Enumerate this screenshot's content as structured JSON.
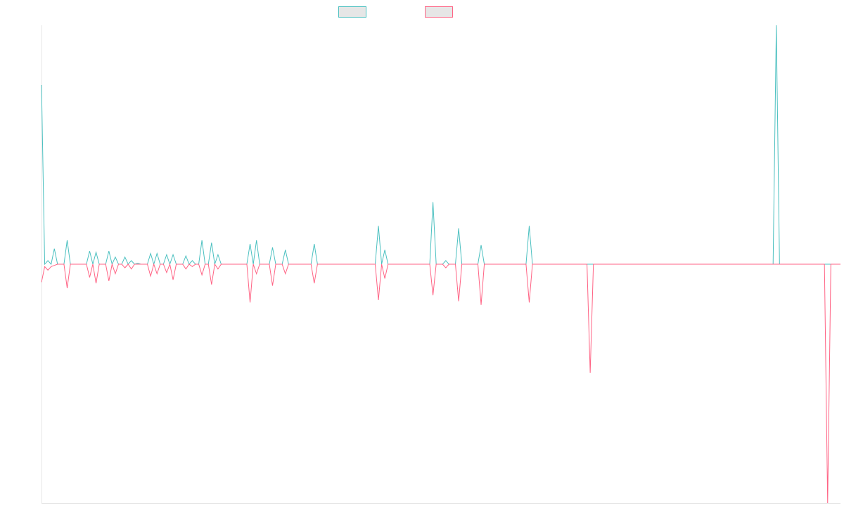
{
  "chart_data": {
    "type": "line",
    "grid": false,
    "legend_placement": "top-center",
    "x_count": 250,
    "ylim": [
      -1,
      1
    ],
    "series": [
      {
        "name": "",
        "color": "#4bc0c0",
        "points": [
          [
            0,
            0.75
          ],
          [
            1,
            0.0
          ],
          [
            2,
            0.015
          ],
          [
            3,
            0.0
          ],
          [
            4,
            0.065
          ],
          [
            5,
            0.0
          ],
          [
            7,
            0.0
          ],
          [
            8,
            0.1
          ],
          [
            9,
            0.0
          ],
          [
            14,
            0.0
          ],
          [
            15,
            0.055
          ],
          [
            16,
            0.0
          ],
          [
            17,
            0.05
          ],
          [
            18,
            0.0
          ],
          [
            20,
            0.0
          ],
          [
            21,
            0.055
          ],
          [
            22,
            0.0
          ],
          [
            23,
            0.03
          ],
          [
            24,
            0.0
          ],
          [
            26,
            0.03
          ],
          [
            27,
            0.0
          ],
          [
            28,
            0.015
          ],
          [
            29,
            0.0
          ],
          [
            30,
            0.004
          ],
          [
            31,
            0.0
          ],
          [
            33,
            0.0
          ],
          [
            34,
            0.045
          ],
          [
            35,
            0.0
          ],
          [
            36,
            0.045
          ],
          [
            37,
            0.0
          ],
          [
            38,
            0.0
          ],
          [
            39,
            0.04
          ],
          [
            40,
            0.0
          ],
          [
            41,
            0.04
          ],
          [
            42,
            0.0
          ],
          [
            44,
            0.0
          ],
          [
            45,
            0.035
          ],
          [
            46,
            0.0
          ],
          [
            47,
            0.015
          ],
          [
            48,
            0.0
          ],
          [
            49,
            0.0
          ],
          [
            50,
            0.1
          ],
          [
            51,
            0.0
          ],
          [
            52,
            0.0
          ],
          [
            53,
            0.09
          ],
          [
            54,
            0.0
          ],
          [
            55,
            0.04
          ],
          [
            56,
            0.0
          ],
          [
            64,
            0.0
          ],
          [
            65,
            0.085
          ],
          [
            66,
            0.0
          ],
          [
            67,
            0.1
          ],
          [
            68,
            0.0
          ],
          [
            71,
            0.0
          ],
          [
            72,
            0.07
          ],
          [
            73,
            0.0
          ],
          [
            75,
            0.0
          ],
          [
            76,
            0.06
          ],
          [
            77,
            0.0
          ],
          [
            84,
            0.0
          ],
          [
            85,
            0.085
          ],
          [
            86,
            0.0
          ],
          [
            104,
            0.0
          ],
          [
            105,
            0.16
          ],
          [
            106,
            0.0
          ],
          [
            107,
            0.06
          ],
          [
            108,
            0.0
          ],
          [
            121,
            0.0
          ],
          [
            122,
            0.26
          ],
          [
            123,
            0.0
          ],
          [
            125,
            0.0
          ],
          [
            126,
            0.015
          ],
          [
            127,
            0.0
          ],
          [
            129,
            0.0
          ],
          [
            130,
            0.15
          ],
          [
            131,
            0.0
          ],
          [
            136,
            0.0
          ],
          [
            137,
            0.08
          ],
          [
            138,
            0.0
          ],
          [
            151,
            0.0
          ],
          [
            152,
            0.16
          ],
          [
            153,
            0.0
          ],
          [
            228,
            0.0
          ],
          [
            229,
            1.0
          ],
          [
            230,
            0.0
          ],
          [
            249,
            0.0
          ]
        ]
      },
      {
        "name": "",
        "color": "#ff6384",
        "points": [
          [
            0,
            -0.075
          ],
          [
            1,
            -0.01
          ],
          [
            2,
            -0.025
          ],
          [
            3,
            -0.01
          ],
          [
            4,
            -0.005
          ],
          [
            5,
            0.0
          ],
          [
            7,
            0.0
          ],
          [
            8,
            -0.1
          ],
          [
            9,
            0.0
          ],
          [
            14,
            0.0
          ],
          [
            15,
            -0.055
          ],
          [
            16,
            0.0
          ],
          [
            17,
            -0.08
          ],
          [
            18,
            0.0
          ],
          [
            20,
            0.0
          ],
          [
            21,
            -0.07
          ],
          [
            22,
            0.0
          ],
          [
            23,
            -0.04
          ],
          [
            24,
            0.0
          ],
          [
            26,
            -0.015
          ],
          [
            27,
            0.0
          ],
          [
            28,
            -0.02
          ],
          [
            29,
            0.0
          ],
          [
            30,
            0.0
          ],
          [
            31,
            0.0
          ],
          [
            33,
            0.0
          ],
          [
            34,
            -0.05
          ],
          [
            35,
            0.0
          ],
          [
            36,
            -0.04
          ],
          [
            37,
            0.0
          ],
          [
            38,
            0.0
          ],
          [
            39,
            -0.035
          ],
          [
            40,
            0.0
          ],
          [
            41,
            -0.065
          ],
          [
            42,
            0.0
          ],
          [
            44,
            0.0
          ],
          [
            45,
            -0.02
          ],
          [
            46,
            0.0
          ],
          [
            47,
            -0.01
          ],
          [
            48,
            0.0
          ],
          [
            49,
            0.0
          ],
          [
            50,
            -0.045
          ],
          [
            51,
            0.0
          ],
          [
            52,
            0.0
          ],
          [
            53,
            -0.085
          ],
          [
            54,
            0.0
          ],
          [
            55,
            -0.02
          ],
          [
            56,
            0.0
          ],
          [
            64,
            0.0
          ],
          [
            65,
            -0.16
          ],
          [
            66,
            0.0
          ],
          [
            67,
            -0.04
          ],
          [
            68,
            0.0
          ],
          [
            71,
            0.0
          ],
          [
            72,
            -0.09
          ],
          [
            73,
            0.0
          ],
          [
            75,
            0.0
          ],
          [
            76,
            -0.04
          ],
          [
            77,
            0.0
          ],
          [
            84,
            0.0
          ],
          [
            85,
            -0.08
          ],
          [
            86,
            0.0
          ],
          [
            104,
            0.0
          ],
          [
            105,
            -0.15
          ],
          [
            106,
            0.0
          ],
          [
            107,
            -0.06
          ],
          [
            108,
            0.0
          ],
          [
            121,
            0.0
          ],
          [
            122,
            -0.13
          ],
          [
            123,
            0.0
          ],
          [
            125,
            0.0
          ],
          [
            126,
            -0.015
          ],
          [
            127,
            0.0
          ],
          [
            129,
            0.0
          ],
          [
            130,
            -0.155
          ],
          [
            131,
            0.0
          ],
          [
            136,
            0.0
          ],
          [
            137,
            -0.17
          ],
          [
            138,
            0.0
          ],
          [
            151,
            0.0
          ],
          [
            152,
            -0.16
          ],
          [
            153,
            0.0
          ],
          [
            170,
            0.0
          ],
          [
            171,
            -0.455
          ],
          [
            172,
            0.0
          ],
          [
            244,
            0.0
          ],
          [
            245,
            -1.0
          ],
          [
            246,
            0.0
          ],
          [
            249,
            0.0
          ]
        ]
      }
    ]
  }
}
